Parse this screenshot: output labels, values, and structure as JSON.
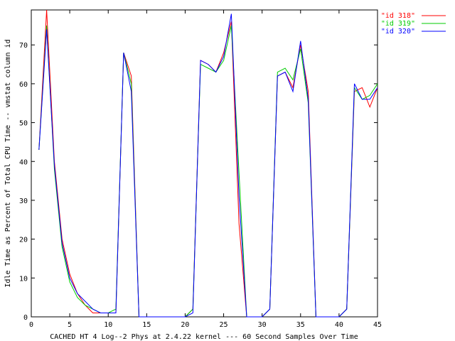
{
  "chart_data": {
    "type": "line",
    "title": "",
    "xlabel": "CACHED HT 4 Log--2 Phys at 2.4.22 kernel --- 60 Second Samples Over Time",
    "ylabel": "Idle Time as Percent of Total CPU Time -- vmstat column id",
    "xlim": [
      0,
      45
    ],
    "ylim": [
      0,
      79
    ],
    "xticks": [
      0,
      5,
      10,
      15,
      20,
      25,
      30,
      35,
      40,
      45
    ],
    "yticks": [
      0,
      10,
      20,
      30,
      40,
      50,
      60,
      70
    ],
    "grid": false,
    "legend_position": "top-right",
    "x": [
      1,
      2,
      3,
      4,
      5,
      6,
      7,
      8,
      9,
      10,
      11,
      12,
      13,
      14,
      15,
      16,
      17,
      18,
      19,
      20,
      21,
      22,
      23,
      24,
      25,
      26,
      27,
      28,
      29,
      30,
      31,
      32,
      33,
      34,
      35,
      36,
      37,
      38,
      39,
      40,
      41,
      42,
      43,
      44,
      45
    ],
    "series": [
      {
        "name": "\"id 318\"",
        "color": "#ff0000",
        "values": [
          43,
          80,
          40,
          20,
          11,
          6,
          3,
          1,
          1,
          1,
          1,
          68,
          62,
          0,
          0,
          0,
          0,
          0,
          0,
          0,
          2,
          66,
          65,
          63,
          68,
          76,
          24,
          0,
          0,
          0,
          2,
          62,
          63,
          59,
          70,
          58,
          0,
          0,
          0,
          0,
          2,
          58,
          59,
          54,
          59
        ]
      },
      {
        "name": "\"id 319\"",
        "color": "#00cc00",
        "values": [
          43,
          75,
          38,
          18,
          9,
          5,
          3,
          2,
          1,
          1,
          2,
          68,
          60,
          0,
          0,
          0,
          0,
          0,
          0,
          0,
          2,
          65,
          64,
          63,
          66,
          75,
          37,
          0,
          0,
          0,
          2,
          63,
          64,
          61,
          69,
          55,
          0,
          0,
          0,
          0,
          2,
          59,
          56,
          57,
          60
        ]
      },
      {
        "name": "\"id 320\"",
        "color": "#0000ff",
        "values": [
          43,
          74,
          39,
          19,
          10,
          6,
          4,
          2,
          1,
          1,
          1,
          68,
          58,
          0,
          0,
          0,
          0,
          0,
          0,
          0,
          1,
          66,
          65,
          63,
          67,
          78,
          31,
          0,
          0,
          0,
          2,
          62,
          63,
          58,
          71,
          56,
          0,
          0,
          0,
          0,
          2,
          60,
          56,
          56,
          59
        ]
      }
    ]
  }
}
